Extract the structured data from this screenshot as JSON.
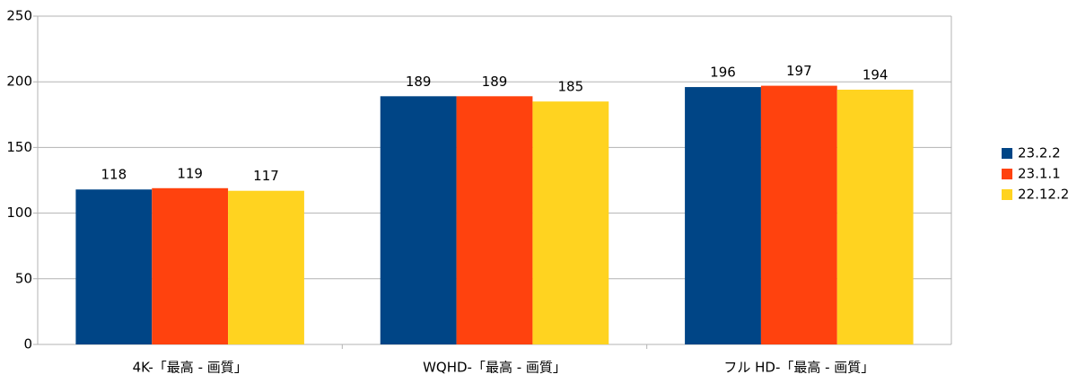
{
  "chart_data": {
    "type": "bar",
    "categories": [
      "4K-「最高 - 画質」",
      "WQHD-「最高 - 画質」",
      "フル HD-「最高 - 画質」"
    ],
    "series": [
      {
        "name": "23.2.2",
        "color": "#004586",
        "values": [
          118,
          189,
          196
        ]
      },
      {
        "name": "23.1.1",
        "color": "#ff420e",
        "values": [
          119,
          189,
          197
        ]
      },
      {
        "name": "22.12.2",
        "color": "#ffd320",
        "values": [
          117,
          185,
          194
        ]
      }
    ],
    "ylim": [
      0,
      250
    ],
    "yticks": [
      0,
      50,
      100,
      150,
      200,
      250
    ],
    "grid": true,
    "legend": "right"
  }
}
